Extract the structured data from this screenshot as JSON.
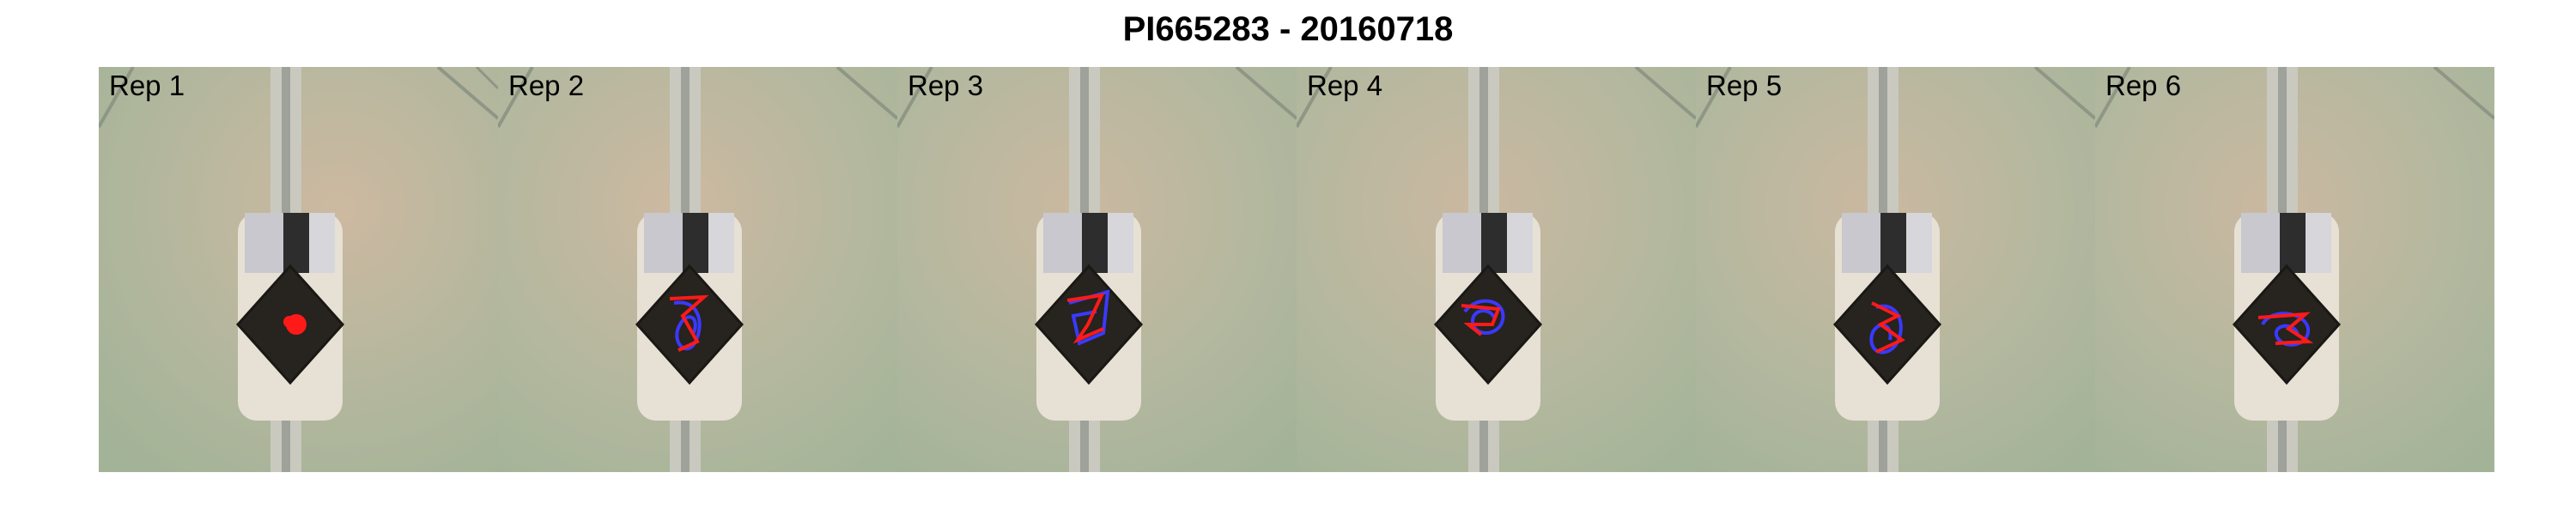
{
  "figure": {
    "title": "PI665283 - 20160718"
  },
  "colors": {
    "background": "#a9b59a",
    "warm_tint": "#c9b79e",
    "rail": "#c8c8bf",
    "tray": "#e3ded2",
    "pot_light": "#c7c7cd",
    "pot_dark": "#2b2b2b",
    "soil": "#2a2620",
    "trace_red": "#ff1a1a",
    "trace_blue": "#3a3aff"
  },
  "panels": [
    {
      "label": "Rep 1",
      "trace": "dot"
    },
    {
      "label": "Rep 2",
      "trace": "loop"
    },
    {
      "label": "Rep 3",
      "trace": "loop"
    },
    {
      "label": "Rep 4",
      "trace": "loop"
    },
    {
      "label": "Rep 5",
      "trace": "loop"
    },
    {
      "label": "Rep 6",
      "trace": "loop"
    }
  ]
}
